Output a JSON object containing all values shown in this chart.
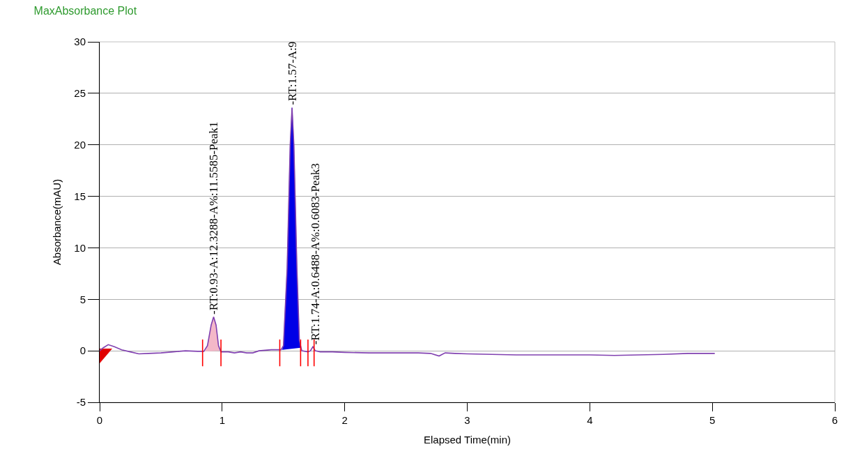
{
  "chart_data": {
    "type": "line",
    "title": "MaxAbsorbance Plot",
    "xlabel": "Elapsed Time(min)",
    "ylabel": "Absorbance(mAU)",
    "xlim": [
      0,
      6
    ],
    "xticks": [
      0,
      1,
      2,
      3,
      4,
      5,
      6
    ],
    "ylim": [
      -5,
      30
    ],
    "yticks": [
      -5,
      0,
      5,
      10,
      15,
      20,
      25,
      30
    ],
    "grid": "y",
    "marker": "none",
    "line_style": "solid",
    "series": [
      {
        "type": "area",
        "color": "#f4b8c8",
        "x": [
          0.86,
          0.88,
          0.91,
          0.93,
          0.95,
          0.97,
          0.98
        ],
        "values": [
          -0.05,
          0.5,
          2.5,
          3.3,
          2.5,
          0.5,
          0.0
        ]
      },
      {
        "type": "area",
        "color": "#0000e6",
        "x": [
          1.49,
          1.5,
          1.53,
          1.555,
          1.57,
          1.585,
          1.61,
          1.63,
          1.64
        ],
        "values": [
          0.1,
          0.5,
          8,
          20,
          23.6,
          20,
          8,
          1,
          0.3
        ]
      },
      {
        "type": "area",
        "color": "#e00000",
        "x": [
          0,
          0.1,
          0
        ],
        "values": [
          0.2,
          0.2,
          -1.2
        ]
      },
      {
        "color": "#8040b0",
        "x": [
          0,
          0.03,
          0.07,
          0.12,
          0.18,
          0.25,
          0.32,
          0.4,
          0.5,
          0.6,
          0.7,
          0.8,
          0.85,
          0.88,
          0.91,
          0.93,
          0.95,
          0.97,
          0.99,
          1.05,
          1.1,
          1.15,
          1.2,
          1.25,
          1.3,
          1.4,
          1.48,
          1.5,
          1.53,
          1.555,
          1.57,
          1.585,
          1.61,
          1.63,
          1.65,
          1.7,
          1.72,
          1.74,
          1.76,
          1.8,
          1.9,
          2.0,
          2.2,
          2.4,
          2.6,
          2.7,
          2.77,
          2.82,
          2.9,
          3.0,
          3.2,
          3.4,
          3.6,
          3.8,
          4.0,
          4.2,
          4.4,
          4.6,
          4.8,
          5.02
        ],
        "values": [
          0,
          0.3,
          0.6,
          0.4,
          0.1,
          -0.1,
          -0.3,
          -0.25,
          -0.2,
          -0.1,
          0.0,
          -0.05,
          -0.05,
          0.5,
          2.5,
          3.3,
          2.5,
          0.5,
          -0.1,
          -0.1,
          -0.2,
          -0.1,
          -0.2,
          -0.2,
          0.0,
          0.1,
          0.1,
          0.5,
          8,
          20,
          23.6,
          20,
          8,
          1,
          0.0,
          -0.1,
          0.0,
          0.4,
          0.0,
          -0.1,
          -0.1,
          -0.15,
          -0.2,
          -0.2,
          -0.2,
          -0.25,
          -0.5,
          -0.2,
          -0.25,
          -0.3,
          -0.35,
          -0.4,
          -0.4,
          -0.4,
          -0.4,
          -0.45,
          -0.4,
          -0.35,
          -0.25,
          -0.25
        ]
      },
      {
        "color": "#ff0000",
        "x": [
          0.84,
          0.84,
          null,
          0.99,
          0.99,
          null,
          1.47,
          1.47,
          null,
          1.64,
          1.64,
          null,
          1.7,
          1.7,
          null,
          1.75,
          1.75
        ],
        "values": [
          -1.5,
          1.1,
          null,
          -1.5,
          1.1,
          null,
          -1.5,
          1.1,
          null,
          -1.5,
          1.1,
          null,
          -1.5,
          1.1,
          null,
          -1.5,
          1.1
        ]
      }
    ],
    "annotations": [
      {
        "text": "-RT:0.93-A:12.3288-A%:11.5585-Peak1",
        "x": 0.93,
        "y": 3.4
      },
      {
        "text": "-RT:1.57-A:9",
        "x": 1.57,
        "y": 23.7
      },
      {
        "text": "-RT:1.74-A:0.6488-A%:0.6083-Peak3",
        "x": 1.76,
        "y": 0.5
      }
    ]
  }
}
